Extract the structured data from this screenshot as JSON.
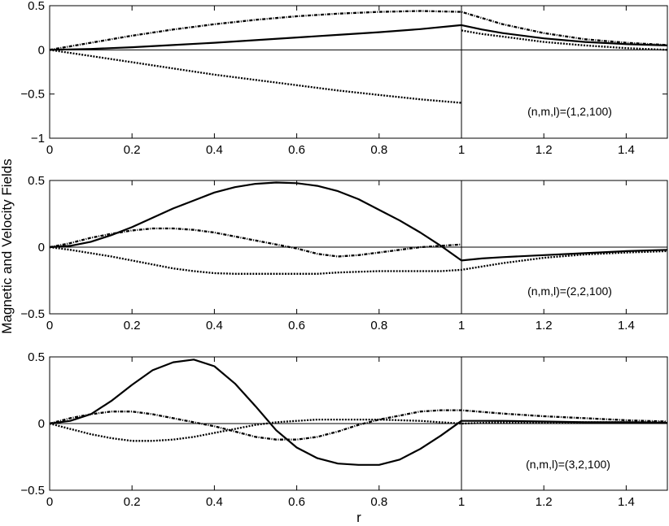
{
  "figure": {
    "ylabel": "Magnetic and Velocity Fields",
    "xlabel": "r"
  },
  "chart_data": [
    {
      "type": "line",
      "annotation": "(n,m,l)=(1,2,100)",
      "xlim": [
        0,
        1.5
      ],
      "ylim": [
        -1,
        0.5
      ],
      "xticks": [
        "0",
        "0.2",
        "0.4",
        "0.6",
        "0.8",
        "1",
        "1.2",
        "1.4"
      ],
      "yticks": [
        "0.5",
        "0",
        "−0.5",
        "−1"
      ],
      "ytick_values": [
        0.5,
        0,
        -0.5,
        -1
      ],
      "series": [
        {
          "style": "solid",
          "x": [
            0,
            0.1,
            0.2,
            0.3,
            0.4,
            0.5,
            0.6,
            0.7,
            0.8,
            0.9,
            1.0,
            1.05,
            1.1,
            1.2,
            1.3,
            1.4,
            1.5
          ],
          "y": [
            0,
            0.01,
            0.03,
            0.055,
            0.08,
            0.11,
            0.14,
            0.17,
            0.2,
            0.235,
            0.28,
            0.23,
            0.19,
            0.13,
            0.09,
            0.065,
            0.05
          ]
        },
        {
          "style": "dashdot",
          "x": [
            0,
            0.1,
            0.2,
            0.3,
            0.4,
            0.5,
            0.6,
            0.7,
            0.8,
            0.9,
            1.0,
            1.05,
            1.1,
            1.2,
            1.3,
            1.4,
            1.5
          ],
          "y": [
            0,
            0.08,
            0.16,
            0.23,
            0.29,
            0.34,
            0.38,
            0.41,
            0.43,
            0.44,
            0.43,
            0.36,
            0.29,
            0.19,
            0.12,
            0.08,
            0.055
          ]
        },
        {
          "style": "dotted",
          "x": [
            0,
            0.1,
            0.2,
            0.3,
            0.4,
            0.5,
            0.6,
            0.7,
            0.8,
            0.9,
            1.0
          ],
          "y": [
            0,
            -0.07,
            -0.14,
            -0.21,
            -0.28,
            -0.34,
            -0.4,
            -0.46,
            -0.51,
            -0.56,
            -0.6
          ]
        },
        {
          "style": "dotted",
          "x": [
            1.0,
            1.05,
            1.1,
            1.2,
            1.3,
            1.4,
            1.5
          ],
          "y": [
            0.22,
            0.18,
            0.15,
            0.09,
            0.05,
            0.02,
            0.0
          ]
        }
      ]
    },
    {
      "type": "line",
      "annotation": "(n,m,l)=(2,2,100)",
      "xlim": [
        0,
        1.5
      ],
      "ylim": [
        -0.5,
        0.5
      ],
      "xticks": [
        "0",
        "0.2",
        "0.4",
        "0.6",
        "0.8",
        "1",
        "1.2",
        "1.4"
      ],
      "yticks": [
        "0.5",
        "0",
        "−0.5"
      ],
      "ytick_values": [
        0.5,
        0,
        -0.5
      ],
      "series": [
        {
          "style": "solid",
          "x": [
            0,
            0.05,
            0.1,
            0.15,
            0.2,
            0.25,
            0.3,
            0.35,
            0.4,
            0.45,
            0.5,
            0.55,
            0.6,
            0.65,
            0.7,
            0.75,
            0.8,
            0.85,
            0.9,
            0.95,
            1.0,
            1.05,
            1.1,
            1.2,
            1.3,
            1.4,
            1.5
          ],
          "y": [
            0,
            0.01,
            0.04,
            0.09,
            0.15,
            0.22,
            0.29,
            0.35,
            0.41,
            0.45,
            0.475,
            0.485,
            0.48,
            0.46,
            0.42,
            0.36,
            0.28,
            0.2,
            0.11,
            0.01,
            -0.1,
            -0.085,
            -0.075,
            -0.06,
            -0.045,
            -0.03,
            -0.02
          ]
        },
        {
          "style": "dashdot",
          "x": [
            0,
            0.05,
            0.1,
            0.15,
            0.2,
            0.25,
            0.3,
            0.35,
            0.4,
            0.45,
            0.5,
            0.55,
            0.6,
            0.65,
            0.7,
            0.75,
            0.8,
            0.85,
            0.9,
            0.95,
            1.0
          ],
          "y": [
            0,
            0.03,
            0.07,
            0.1,
            0.125,
            0.14,
            0.14,
            0.13,
            0.11,
            0.08,
            0.05,
            0.02,
            -0.01,
            -0.05,
            -0.07,
            -0.06,
            -0.04,
            -0.02,
            0.0,
            0.01,
            0.02
          ]
        },
        {
          "style": "dotted",
          "x": [
            0,
            0.05,
            0.1,
            0.15,
            0.2,
            0.25,
            0.3,
            0.35,
            0.4,
            0.45,
            0.5,
            0.55,
            0.6,
            0.65,
            0.7,
            0.75,
            0.8,
            0.85,
            0.9,
            0.95,
            1.0,
            1.1,
            1.2,
            1.3,
            1.4,
            1.5
          ],
          "y": [
            0,
            -0.02,
            -0.045,
            -0.07,
            -0.1,
            -0.13,
            -0.16,
            -0.18,
            -0.195,
            -0.2,
            -0.2,
            -0.2,
            -0.2,
            -0.2,
            -0.19,
            -0.185,
            -0.18,
            -0.18,
            -0.18,
            -0.18,
            -0.17,
            -0.12,
            -0.08,
            -0.055,
            -0.04,
            -0.03
          ]
        }
      ]
    },
    {
      "type": "line",
      "annotation": "(n,m,l)=(3,2,100)",
      "xlim": [
        0,
        1.5
      ],
      "ylim": [
        -0.5,
        0.5
      ],
      "xticks": [
        "0",
        "0.2",
        "0.4",
        "0.6",
        "0.8",
        "1",
        "1.2",
        "1.4"
      ],
      "yticks": [
        "0.5",
        "0",
        "−0.5"
      ],
      "ytick_values": [
        0.5,
        0,
        -0.5
      ],
      "series": [
        {
          "style": "solid",
          "x": [
            0,
            0.05,
            0.1,
            0.15,
            0.2,
            0.25,
            0.3,
            0.35,
            0.4,
            0.45,
            0.5,
            0.55,
            0.6,
            0.65,
            0.7,
            0.75,
            0.8,
            0.85,
            0.9,
            0.95,
            1.0,
            1.05,
            1.1,
            1.2,
            1.3,
            1.4,
            1.5
          ],
          "y": [
            0,
            0.02,
            0.07,
            0.17,
            0.29,
            0.4,
            0.46,
            0.48,
            0.43,
            0.3,
            0.13,
            -0.05,
            -0.18,
            -0.26,
            -0.3,
            -0.31,
            -0.31,
            -0.27,
            -0.19,
            -0.09,
            0.02,
            0.02,
            0.02,
            0.015,
            0.01,
            0.01,
            0.005
          ]
        },
        {
          "style": "dashdot",
          "x": [
            0,
            0.05,
            0.1,
            0.15,
            0.2,
            0.25,
            0.3,
            0.35,
            0.4,
            0.45,
            0.5,
            0.55,
            0.6,
            0.65,
            0.7,
            0.75,
            0.8,
            0.85,
            0.9,
            0.95,
            1.0,
            1.1,
            1.2,
            1.3,
            1.4,
            1.5
          ],
          "y": [
            0,
            0.04,
            0.07,
            0.09,
            0.09,
            0.07,
            0.04,
            0.01,
            -0.02,
            -0.06,
            -0.1,
            -0.12,
            -0.12,
            -0.1,
            -0.06,
            -0.01,
            0.03,
            0.06,
            0.09,
            0.1,
            0.1,
            0.075,
            0.055,
            0.04,
            0.025,
            0.015
          ]
        },
        {
          "style": "dotted",
          "x": [
            0,
            0.05,
            0.1,
            0.15,
            0.2,
            0.25,
            0.3,
            0.35,
            0.4,
            0.45,
            0.5,
            0.55,
            0.6,
            0.65,
            0.7,
            0.75,
            0.8,
            0.85,
            0.9,
            0.95,
            1.0,
            1.1,
            1.2,
            1.3,
            1.4,
            1.5
          ],
          "y": [
            0,
            -0.04,
            -0.08,
            -0.11,
            -0.13,
            -0.13,
            -0.12,
            -0.1,
            -0.07,
            -0.04,
            -0.01,
            0.01,
            0.02,
            0.03,
            0.03,
            0.03,
            0.03,
            0.025,
            0.02,
            0.01,
            0.0,
            0.01,
            0.01,
            0.01,
            0.01,
            0.01
          ]
        }
      ]
    }
  ]
}
